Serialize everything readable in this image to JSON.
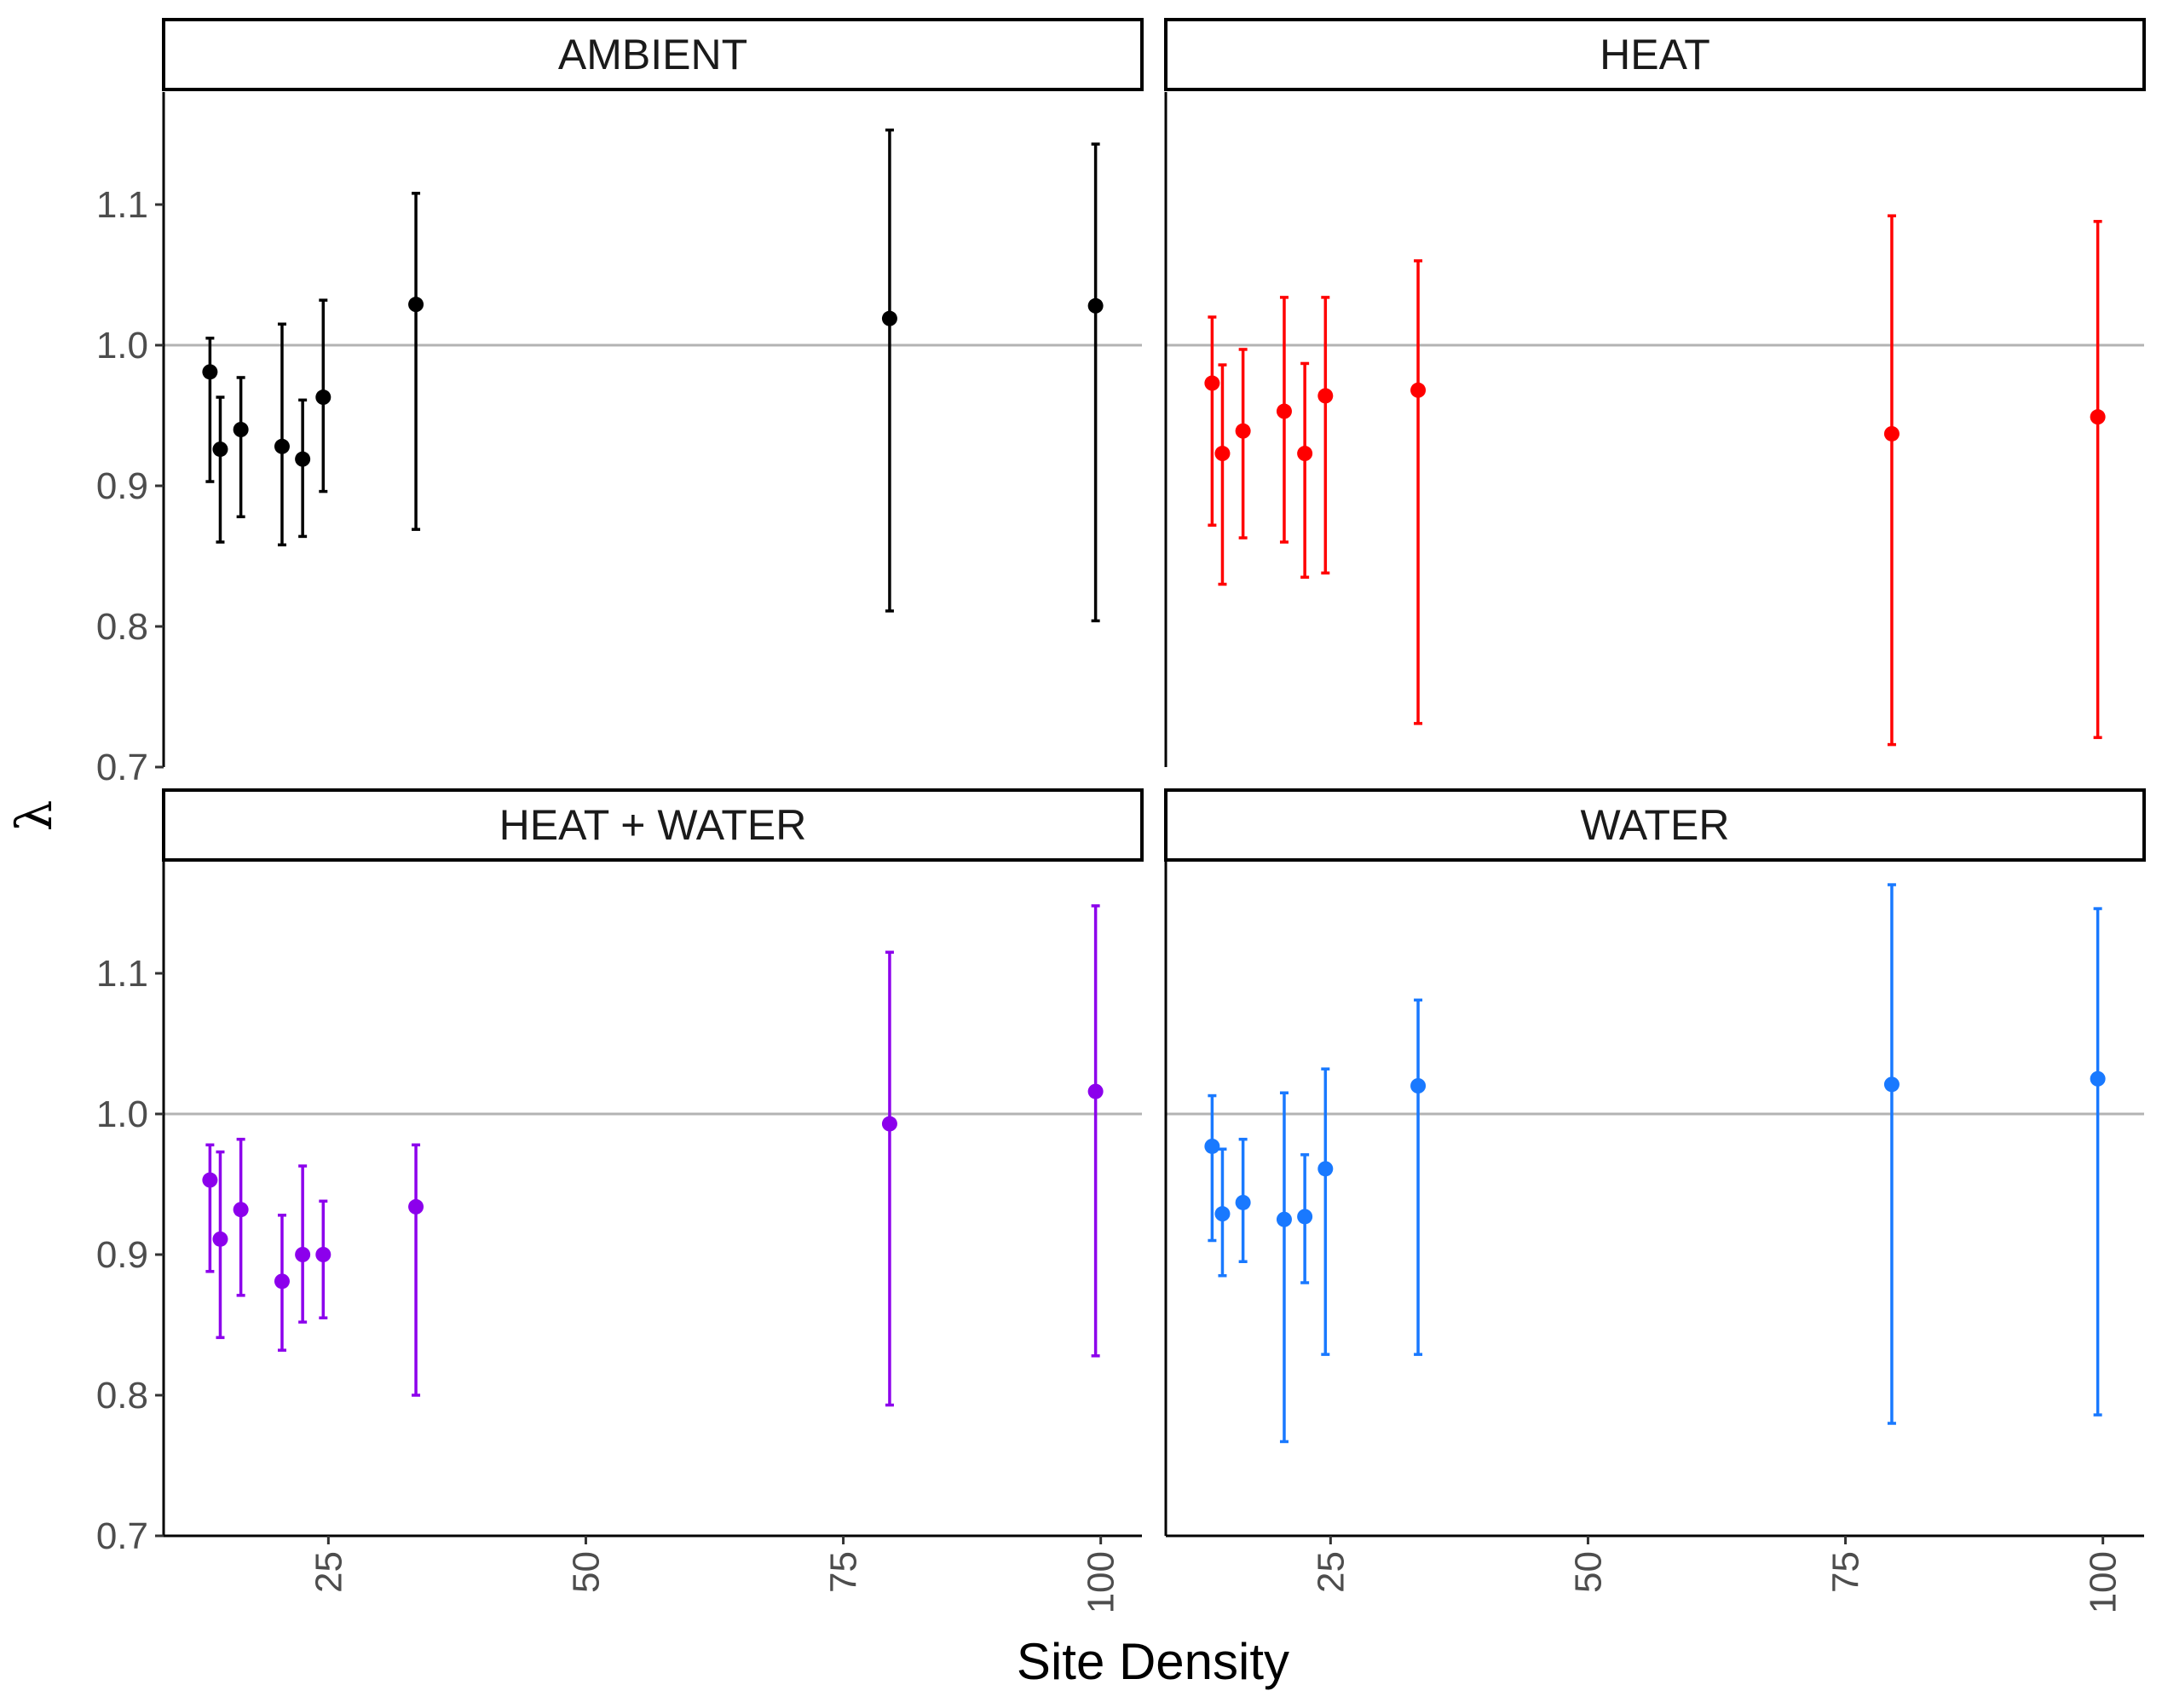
{
  "chart_data": {
    "type": "scatter",
    "subtype": "point-with-errorbars, faceted 2x2",
    "xlabel": "Site Density",
    "ylabel": "λ",
    "xlim": [
      9,
      104
    ],
    "ylim": [
      0.7,
      1.18
    ],
    "x_ticks": [
      25,
      50,
      75,
      100
    ],
    "x_tick_labels": [
      "25",
      "50",
      "75",
      "100"
    ],
    "y_ticks": [
      0.7,
      0.8,
      0.9,
      1.0,
      1.1
    ],
    "y_tick_labels": [
      "0.7",
      "0.8",
      "0.9",
      "1.0",
      "1.1"
    ],
    "reference_line": 1.0,
    "reference_line_color": "#b3b3b3",
    "grid": false,
    "legend": "none",
    "x": [
      13.5,
      14.5,
      16.5,
      20.5,
      22.5,
      24.5,
      33.5,
      79.5,
      99.5
    ],
    "panels": [
      {
        "title": "AMBIENT",
        "color": "#000000",
        "y": [
          0.981,
          0.926,
          0.94,
          0.928,
          0.919,
          0.963,
          1.029,
          1.019,
          1.028
        ],
        "lower": [
          0.903,
          0.86,
          0.878,
          0.858,
          0.864,
          0.896,
          0.869,
          0.811,
          0.804
        ],
        "upper": [
          1.005,
          0.963,
          0.977,
          1.015,
          0.961,
          1.032,
          1.108,
          1.153,
          1.143
        ]
      },
      {
        "title": "HEAT",
        "color": "#ff0000",
        "y": [
          0.973,
          0.923,
          0.939,
          0.953,
          0.923,
          0.964,
          0.968,
          0.937,
          0.949
        ],
        "lower": [
          0.872,
          0.83,
          0.863,
          0.86,
          0.835,
          0.838,
          0.731,
          0.716,
          0.721
        ],
        "upper": [
          1.02,
          0.986,
          0.997,
          1.034,
          0.987,
          1.034,
          1.06,
          1.092,
          1.088
        ]
      },
      {
        "title": "HEAT + WATER",
        "color": "#8c00ec",
        "y": [
          0.953,
          0.911,
          0.932,
          0.881,
          0.9,
          0.9,
          0.934,
          0.993,
          1.016
        ],
        "lower": [
          0.888,
          0.841,
          0.871,
          0.832,
          0.852,
          0.855,
          0.8,
          0.793,
          0.828
        ],
        "upper": [
          0.978,
          0.973,
          0.982,
          0.928,
          0.963,
          0.938,
          0.978,
          1.115,
          1.148
        ]
      },
      {
        "title": "WATER",
        "color": "#1979ff",
        "y": [
          0.977,
          0.929,
          0.937,
          0.925,
          0.927,
          0.961,
          1.02,
          1.021,
          1.025
        ],
        "lower": [
          0.91,
          0.885,
          0.895,
          0.767,
          0.88,
          0.829,
          0.829,
          0.78,
          0.786
        ],
        "upper": [
          1.013,
          0.975,
          0.982,
          1.015,
          0.971,
          1.032,
          1.081,
          1.163,
          1.146
        ]
      }
    ]
  }
}
